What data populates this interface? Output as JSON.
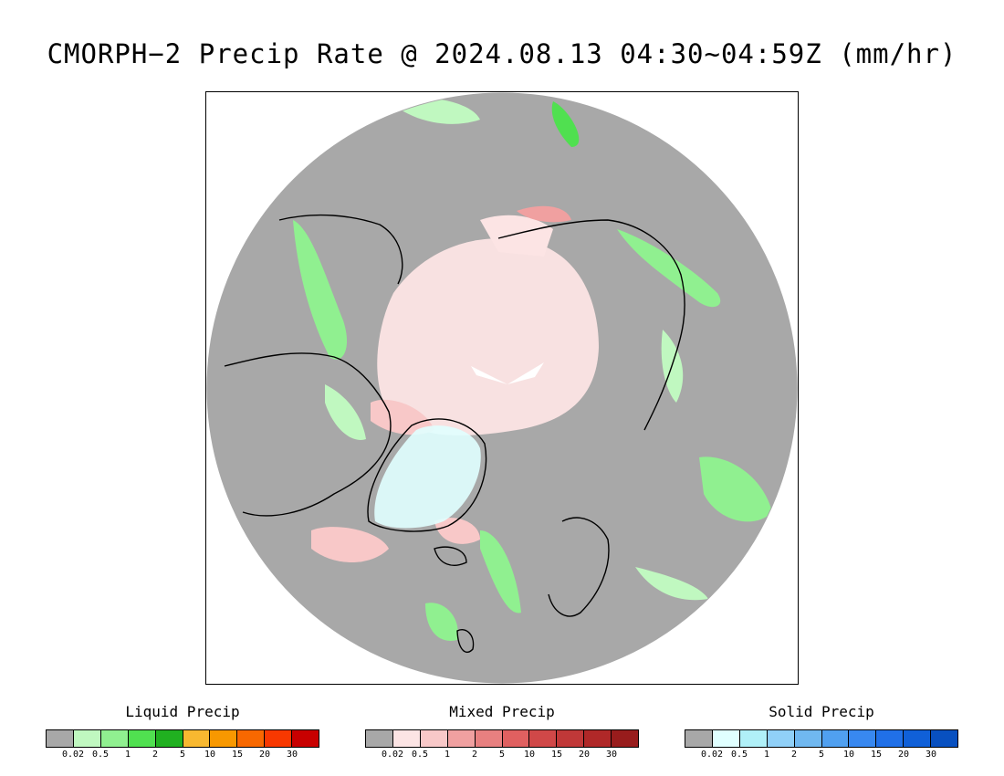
{
  "title": "CMORPH−2 Precip Rate @ 2024.08.13 04:30~04:59Z (mm/hr)",
  "map": {
    "projection": "north-polar-stereographic",
    "background_color": "#a8a8a8",
    "coastline_color": "#000000"
  },
  "legends": [
    {
      "title": "Liquid Precip",
      "ticks": [
        "0.02",
        "0.5",
        "1",
        "2",
        "5",
        "10",
        "15",
        "20",
        "30"
      ],
      "colors": [
        "#a8a8a8",
        "#c0f8c0",
        "#90f090",
        "#50e050",
        "#20b020",
        "#f8b830",
        "#f89800",
        "#f86800",
        "#f83800",
        "#c80000"
      ]
    },
    {
      "title": "Mixed Precip",
      "ticks": [
        "0.02",
        "0.5",
        "1",
        "2",
        "5",
        "10",
        "15",
        "20",
        "30"
      ],
      "colors": [
        "#a8a8a8",
        "#fce4e4",
        "#f8c8c8",
        "#f0a0a0",
        "#e88080",
        "#e06060",
        "#d04848",
        "#c03838",
        "#b02828",
        "#981c1c"
      ]
    },
    {
      "title": "Solid Precip",
      "ticks": [
        "0.02",
        "0.5",
        "1",
        "2",
        "5",
        "10",
        "15",
        "20",
        "30"
      ],
      "colors": [
        "#a8a8a8",
        "#e0ffff",
        "#b0f0f8",
        "#90d0f8",
        "#70b8f0",
        "#50a0f0",
        "#3888f0",
        "#2070e8",
        "#1060d8",
        "#0850c0"
      ]
    }
  ]
}
